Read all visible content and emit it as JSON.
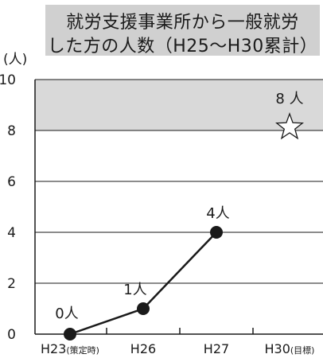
{
  "chart_data": {
    "type": "line",
    "title_lines": [
      "就労支援事業所から一般就労",
      "した方の人数（H25～H30累計）"
    ],
    "ylabel": "(人)",
    "ylim": [
      0,
      10
    ],
    "yticks": [
      0,
      2,
      4,
      6,
      8,
      10
    ],
    "x_labels": [
      {
        "main": "H23",
        "sub": "(策定時)"
      },
      {
        "main": "H26",
        "sub": ""
      },
      {
        "main": "H27",
        "sub": ""
      },
      {
        "main": "H30",
        "sub": "(目標)"
      }
    ],
    "series": [
      {
        "values": [
          0,
          1,
          4
        ],
        "labels": [
          "0人",
          "1人",
          "4人"
        ]
      }
    ],
    "target": {
      "value": 8,
      "label": "8 人",
      "x_index": 3
    },
    "target_band": [
      8,
      10
    ],
    "colors": {
      "line": "#1a1a1a",
      "band": "#d9d9d9",
      "title_bg": "#d0d0d0"
    }
  }
}
